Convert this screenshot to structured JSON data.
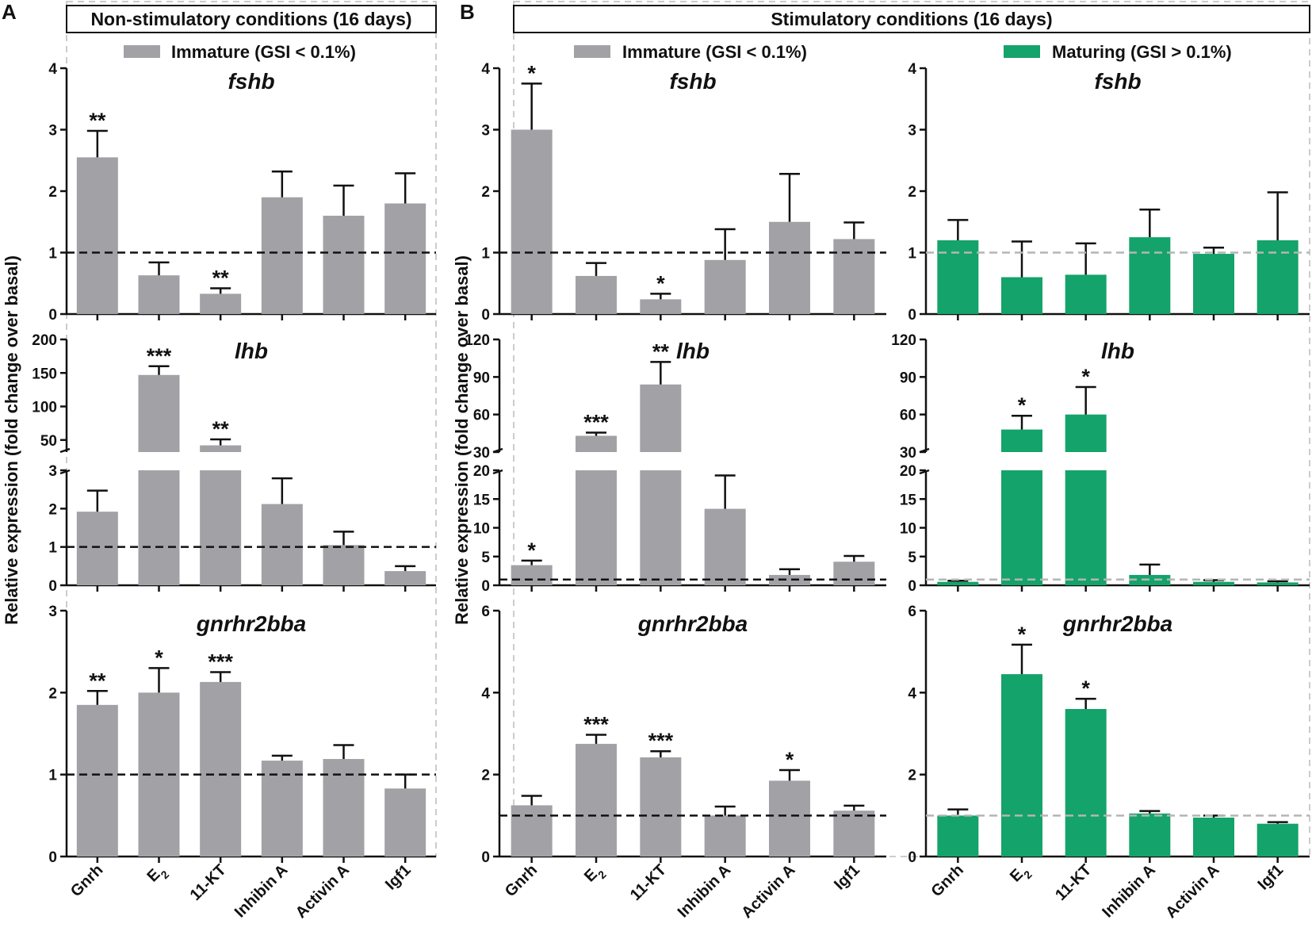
{
  "panels": {
    "A": {
      "label": "A",
      "header": "Non-stimulatory conditions (16 days)"
    },
    "B": {
      "label": "B",
      "header": "Stimulatory conditions (16 days)"
    }
  },
  "legends": {
    "immature": "Immature (GSI < 0.1%)",
    "maturing": "Maturing (GSI > 0.1%)"
  },
  "y_axis_label": "Relative expression (fold change over basal)",
  "colors": {
    "immature": "#a2a2a6",
    "maturing": "#14a36a"
  },
  "chart_data": [
    {
      "id": "A-fshb",
      "type": "bar",
      "group": "immature",
      "title": "fshb",
      "categories": [
        "Gnrh",
        "E2",
        "11-KT",
        "Inhibin A",
        "Activin A",
        "Igf1"
      ],
      "values": [
        2.55,
        0.63,
        0.33,
        1.9,
        1.6,
        1.8
      ],
      "errors": [
        0.43,
        0.21,
        0.09,
        0.42,
        0.49,
        0.49
      ],
      "significance": [
        "**",
        "",
        "**",
        "",
        "",
        ""
      ],
      "ylim": [
        0,
        4
      ],
      "yticks": [
        0,
        1,
        2,
        3,
        4
      ],
      "baseline": 1
    },
    {
      "id": "A-lhb",
      "type": "bar",
      "group": "immature",
      "title": "lhb",
      "broken_axis": true,
      "categories": [
        "Gnrh",
        "E2",
        "11-KT",
        "Inhibin A",
        "Activin A",
        "Igf1"
      ],
      "values": [
        1.92,
        147,
        42,
        2.12,
        1.05,
        0.37
      ],
      "errors": [
        0.55,
        13,
        9,
        0.67,
        0.35,
        0.13
      ],
      "significance": [
        "",
        "***",
        "**",
        "",
        "",
        ""
      ],
      "lower_ylim": [
        0,
        3
      ],
      "lower_yticks": [
        0,
        1,
        2,
        3
      ],
      "upper_ylim": [
        32,
        200
      ],
      "upper_yticks": [
        50,
        100,
        150,
        200
      ],
      "baseline": 1
    },
    {
      "id": "A-gnrhr2bba",
      "type": "bar",
      "group": "immature",
      "title": "gnrhr2bba",
      "categories": [
        "Gnrh",
        "E2",
        "11-KT",
        "Inhibin A",
        "Activin A",
        "Igf1"
      ],
      "values": [
        1.85,
        2.0,
        2.13,
        1.17,
        1.19,
        0.83
      ],
      "errors": [
        0.17,
        0.3,
        0.12,
        0.06,
        0.17,
        0.17
      ],
      "significance": [
        "**",
        "*",
        "***",
        "",
        "",
        ""
      ],
      "ylim": [
        0,
        3
      ],
      "yticks": [
        0,
        1,
        2,
        3
      ],
      "baseline": 1
    },
    {
      "id": "B-imm-fshb",
      "type": "bar",
      "group": "immature",
      "title": "fshb",
      "categories": [
        "Gnrh",
        "E2",
        "11-KT",
        "Inhibin A",
        "Activin A",
        "Igf1"
      ],
      "values": [
        3.0,
        0.62,
        0.24,
        0.88,
        1.5,
        1.22
      ],
      "errors": [
        0.75,
        0.21,
        0.09,
        0.5,
        0.78,
        0.27
      ],
      "significance": [
        "*",
        "",
        "*",
        "",
        "",
        ""
      ],
      "ylim": [
        0,
        4
      ],
      "yticks": [
        0,
        1,
        2,
        3,
        4
      ],
      "baseline": 1
    },
    {
      "id": "B-imm-lhb",
      "type": "bar",
      "group": "immature",
      "title": "lhb",
      "broken_axis": true,
      "categories": [
        "Gnrh",
        "E2",
        "11-KT",
        "Inhibin A",
        "Activin A",
        "Igf1"
      ],
      "values": [
        3.5,
        43,
        84,
        13.3,
        1.8,
        4.1
      ],
      "errors": [
        0.8,
        2.5,
        18,
        5.8,
        1.0,
        1.0
      ],
      "significance": [
        "*",
        "***",
        "**",
        "",
        "",
        ""
      ],
      "lower_ylim": [
        0,
        20
      ],
      "lower_yticks": [
        0,
        5,
        10,
        15,
        20
      ],
      "upper_ylim": [
        30,
        120
      ],
      "upper_yticks": [
        30,
        60,
        90,
        120
      ],
      "baseline": 1
    },
    {
      "id": "B-imm-gnrhr2bba",
      "type": "bar",
      "group": "immature",
      "title": "gnrhr2bba",
      "categories": [
        "Gnrh",
        "E2",
        "11-KT",
        "Inhibin A",
        "Activin A",
        "Igf1"
      ],
      "values": [
        1.25,
        2.75,
        2.42,
        1.0,
        1.85,
        1.12
      ],
      "errors": [
        0.23,
        0.22,
        0.15,
        0.22,
        0.26,
        0.12
      ],
      "significance": [
        "",
        "***",
        "***",
        "",
        "*",
        ""
      ],
      "ylim": [
        0,
        6
      ],
      "yticks": [
        0,
        2,
        4,
        6
      ],
      "baseline": 1
    },
    {
      "id": "B-mat-fshb",
      "type": "bar",
      "group": "maturing",
      "title": "fshb",
      "categories": [
        "Gnrh",
        "E2",
        "11-KT",
        "Inhibin A",
        "Activin A",
        "Igf1"
      ],
      "values": [
        1.2,
        0.6,
        0.64,
        1.25,
        0.98,
        1.2
      ],
      "errors": [
        0.33,
        0.58,
        0.51,
        0.45,
        0.1,
        0.78
      ],
      "significance": [
        "",
        "",
        "",
        "",
        "",
        ""
      ],
      "ylim": [
        0,
        4
      ],
      "yticks": [
        0,
        1,
        2,
        3,
        4
      ],
      "baseline": 1
    },
    {
      "id": "B-mat-lhb",
      "type": "bar",
      "group": "maturing",
      "title": "lhb",
      "broken_axis": true,
      "categories": [
        "Gnrh",
        "E2",
        "11-KT",
        "Inhibin A",
        "Activin A",
        "Igf1"
      ],
      "values": [
        0.6,
        48,
        60,
        1.8,
        0.6,
        0.5
      ],
      "errors": [
        0.2,
        11,
        22,
        1.8,
        0.3,
        0.2
      ],
      "significance": [
        "",
        "*",
        "*",
        "",
        "",
        ""
      ],
      "lower_ylim": [
        0,
        20
      ],
      "lower_yticks": [
        0,
        5,
        10,
        15,
        20
      ],
      "upper_ylim": [
        30,
        120
      ],
      "upper_yticks": [
        30,
        60,
        90,
        120
      ],
      "baseline": 1
    },
    {
      "id": "B-mat-gnrhr2bba",
      "type": "bar",
      "group": "maturing",
      "title": "gnrhr2bba",
      "categories": [
        "Gnrh",
        "E2",
        "11-KT",
        "Inhibin A",
        "Activin A",
        "Igf1"
      ],
      "values": [
        1.0,
        4.45,
        3.6,
        1.05,
        0.95,
        0.8
      ],
      "errors": [
        0.15,
        0.72,
        0.25,
        0.06,
        0.05,
        0.04
      ],
      "significance": [
        "",
        "*",
        "*",
        "",
        "",
        ""
      ],
      "ylim": [
        0,
        6
      ],
      "yticks": [
        0,
        2,
        4,
        6
      ],
      "baseline": 1
    }
  ]
}
